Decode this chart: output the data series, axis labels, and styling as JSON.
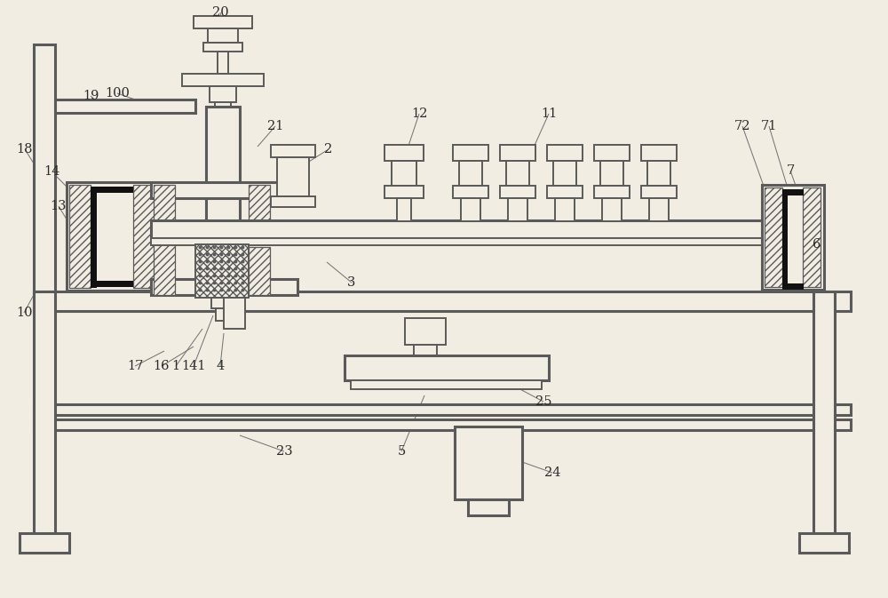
{
  "bg_color": "#f2ede3",
  "line_color": "#5a5a5a",
  "black": "#111111",
  "white": "#f2ede3",
  "lw_main": 1.4,
  "lw_thick": 2.2,
  "lw_thin": 0.9,
  "fig_w": 10.0,
  "fig_h": 6.73,
  "dpi": 100
}
